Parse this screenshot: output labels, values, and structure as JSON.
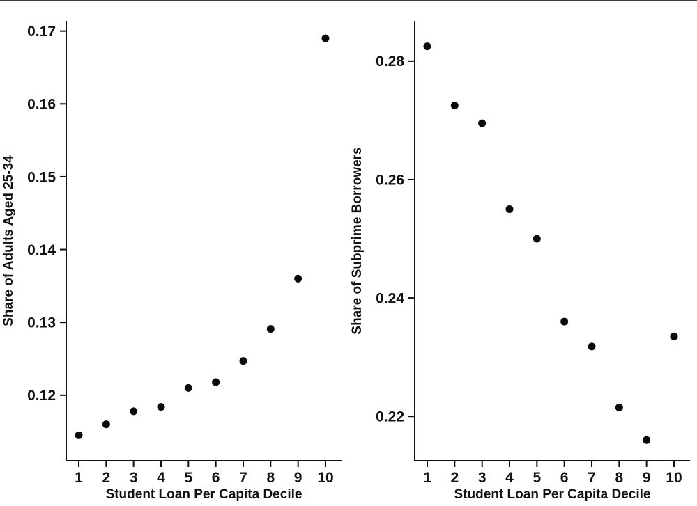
{
  "page": {
    "background": "#ffffff",
    "axis_color": "#111111",
    "marker_color": "#0a0a0a"
  },
  "chart_data": [
    {
      "type": "scatter",
      "title": "",
      "xlabel": "Student Loan Per Capita Decile",
      "ylabel": "Share of Adults Aged 25-34",
      "categories": [
        "1",
        "2",
        "3",
        "4",
        "5",
        "6",
        "7",
        "8",
        "9",
        "10"
      ],
      "values": [
        0.1145,
        0.116,
        0.1178,
        0.1184,
        0.121,
        0.1218,
        0.1247,
        0.1291,
        0.136,
        0.169
      ],
      "yticks": [
        0.12,
        0.13,
        0.14,
        0.15,
        0.16,
        0.17
      ],
      "ytick_labels": [
        "0.12",
        "0.13",
        "0.14",
        "0.15",
        "0.16",
        "0.17"
      ],
      "ylim": [
        0.111,
        0.1714
      ],
      "grid": false,
      "legend": "none",
      "marker": "filled-circle"
    },
    {
      "type": "scatter",
      "title": "",
      "xlabel": "Student Loan Per Capita Decile",
      "ylabel": "Share of Subprime Borrowers",
      "categories": [
        "1",
        "2",
        "3",
        "4",
        "5",
        "6",
        "7",
        "8",
        "9",
        "10"
      ],
      "values": [
        0.2825,
        0.2725,
        0.2695,
        0.255,
        0.25,
        0.236,
        0.2318,
        0.2215,
        0.216,
        0.2335
      ],
      "yticks": [
        0.22,
        0.24,
        0.26,
        0.28
      ],
      "ytick_labels": [
        "0.22",
        "0.24",
        "0.26",
        "0.28"
      ],
      "ylim": [
        0.2125,
        0.2868
      ],
      "grid": false,
      "legend": "none",
      "marker": "filled-circle"
    }
  ]
}
